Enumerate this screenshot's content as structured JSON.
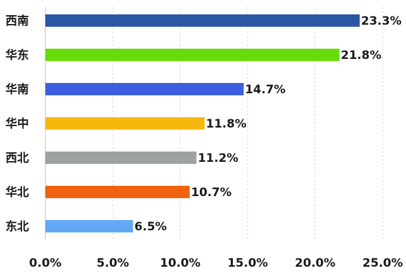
{
  "chart_data": {
    "type": "bar",
    "orientation": "horizontal",
    "categories": [
      "西南",
      "华东",
      "华南",
      "华中",
      "西北",
      "华北",
      "东北"
    ],
    "values": [
      23.3,
      21.8,
      14.7,
      11.8,
      11.2,
      10.7,
      6.5
    ],
    "value_labels": [
      "23.3%",
      "21.8%",
      "14.7%",
      "11.8%",
      "11.2%",
      "10.7%",
      "6.5%"
    ],
    "colors": [
      "#2a56a4",
      "#66dd0a",
      "#3b5fe0",
      "#f5b80e",
      "#9ea3a2",
      "#f0620f",
      "#62a8f4"
    ],
    "xlim": [
      0,
      25
    ],
    "x_ticks": [
      0,
      5,
      10,
      15,
      20,
      25
    ],
    "x_tick_labels": [
      "0.0%",
      "5.0%",
      "10.0%",
      "15.0%",
      "20.0%",
      "25.0%"
    ],
    "grid": true,
    "legend": false
  }
}
